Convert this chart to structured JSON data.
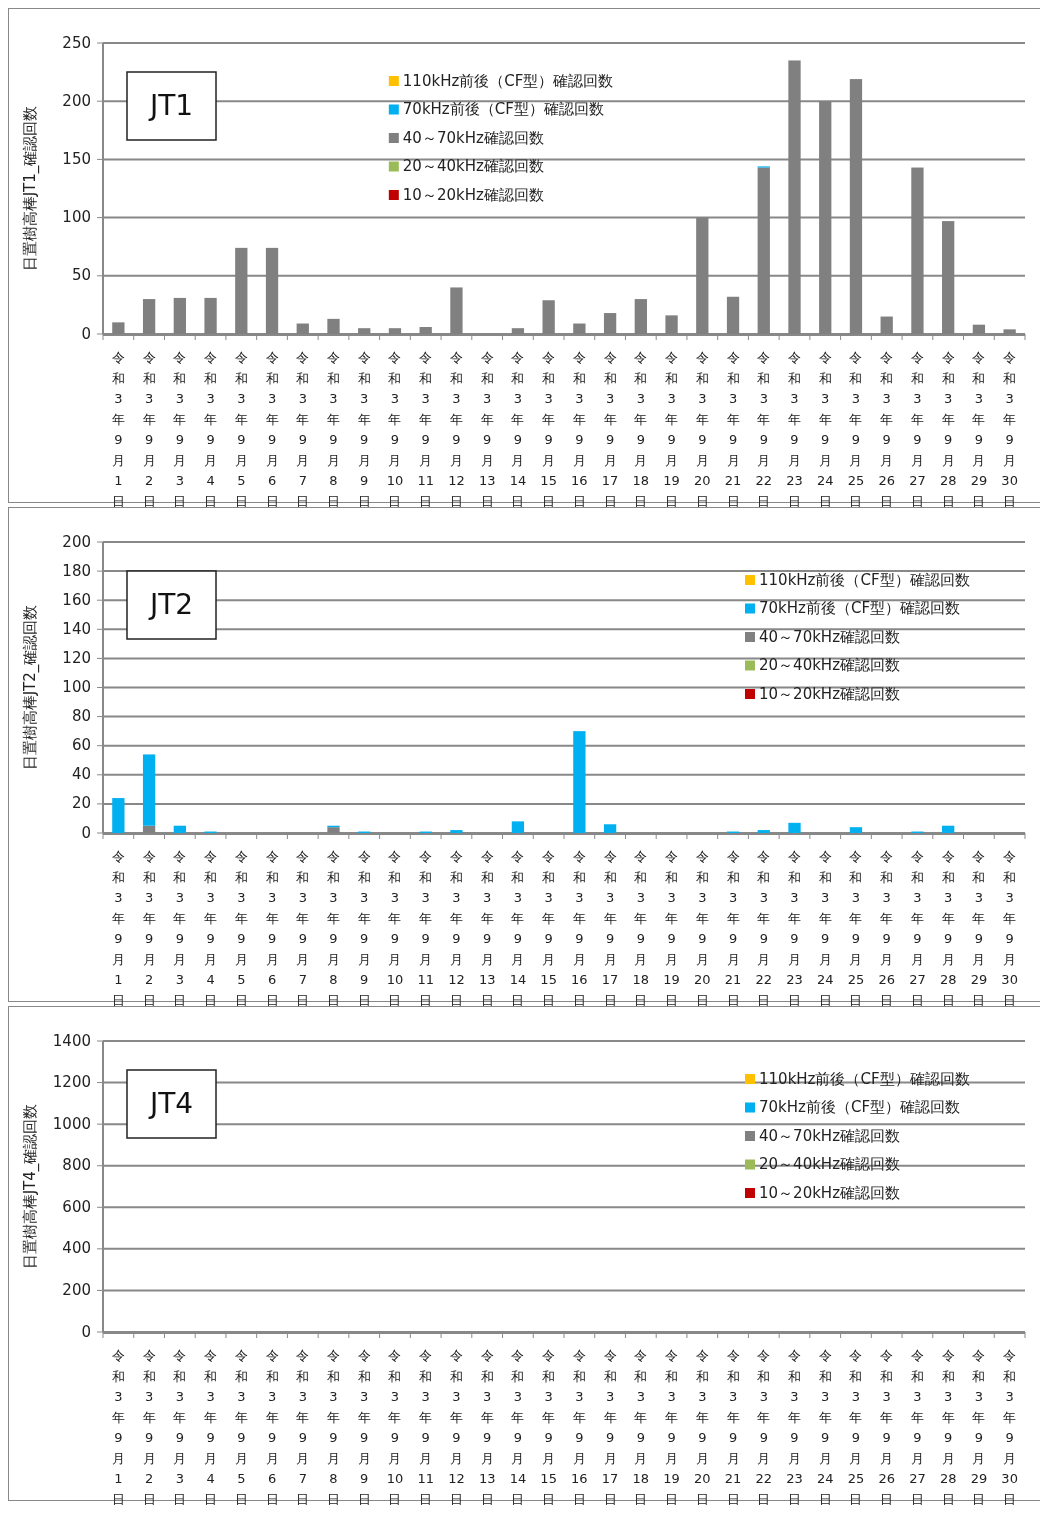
{
  "chart_data": [
    {
      "type": "bar",
      "title": "JT1",
      "ylabel": "日置樹高棒JT1_確認回数",
      "stacked": true,
      "grid": "y",
      "legend": "top",
      "ylim": [
        0,
        250
      ],
      "yticks": [
        0,
        50,
        100,
        150,
        200,
        250
      ],
      "categories": [
        "令和3年9月1日",
        "令和3年9月2日",
        "令和3年9月3日",
        "令和3年9月4日",
        "令和3年9月5日",
        "令和3年9月6日",
        "令和3年9月7日",
        "令和3年9月8日",
        "令和3年9月9日",
        "令和3年9月10日",
        "令和3年9月11日",
        "令和3年9月12日",
        "令和3年9月13日",
        "令和3年9月14日",
        "令和3年9月15日",
        "令和3年9月16日",
        "令和3年9月17日",
        "令和3年9月18日",
        "令和3年9月19日",
        "令和3年9月20日",
        "令和3年9月21日",
        "令和3年9月22日",
        "令和3年9月23日",
        "令和3年9月24日",
        "令和3年9月25日",
        "令和3年9月26日",
        "令和3年9月27日",
        "令和3年9月28日",
        "令和3年9月29日",
        "令和3年9月30日"
      ],
      "series": [
        {
          "name": "10～20kHz確認回数",
          "color": "#c00000",
          "values": [
            0,
            0,
            0,
            0,
            0,
            0,
            0,
            0,
            0,
            0,
            0,
            0,
            0,
            0,
            0,
            0,
            0,
            0,
            0,
            0,
            0,
            0,
            0,
            0,
            0,
            0,
            0,
            0,
            0,
            0
          ]
        },
        {
          "name": "20～40kHz確認回数",
          "color": "#9bbb59",
          "values": [
            0,
            0,
            0,
            0,
            0,
            0,
            0,
            0,
            0,
            0,
            0,
            0,
            0,
            0,
            0,
            0,
            0,
            0,
            0,
            0,
            0,
            0,
            0,
            0,
            0,
            0,
            0,
            0,
            0,
            0
          ]
        },
        {
          "name": "40～70kHz確認回数",
          "color": "#808080",
          "values": [
            10,
            30,
            31,
            31,
            74,
            74,
            9,
            13,
            5,
            5,
            6,
            40,
            0,
            5,
            29,
            9,
            18,
            30,
            16,
            100,
            32,
            143,
            235,
            200,
            219,
            15,
            143,
            97,
            8,
            4
          ]
        },
        {
          "name": "70kHz前後（CF型）確認回数",
          "color": "#00b0f0",
          "values": [
            0,
            0,
            0,
            0,
            0,
            0,
            0,
            0,
            0,
            0,
            0,
            0,
            0,
            0,
            0,
            0,
            0,
            0,
            0,
            0,
            0,
            1,
            0,
            0,
            0,
            0,
            0,
            0,
            0,
            0
          ]
        },
        {
          "name": "110kHz前後（CF型）確認回数",
          "color": "#ffc000",
          "values": [
            0,
            0,
            0,
            0,
            0,
            0,
            0,
            0,
            0,
            0,
            0,
            0,
            0,
            0,
            0,
            0,
            0,
            0,
            0,
            0,
            0,
            0,
            0,
            0,
            0,
            0,
            0,
            0,
            0,
            0
          ]
        }
      ]
    },
    {
      "type": "bar",
      "title": "JT2",
      "ylabel": "日置樹高棒JT2_確認回数",
      "stacked": true,
      "grid": "y",
      "legend": "top right",
      "ylim": [
        0,
        200
      ],
      "yticks": [
        0,
        20,
        40,
        60,
        80,
        100,
        120,
        140,
        160,
        180,
        200
      ],
      "categories": [
        "令和3年9月1日",
        "令和3年9月2日",
        "令和3年9月3日",
        "令和3年9月4日",
        "令和3年9月5日",
        "令和3年9月6日",
        "令和3年9月7日",
        "令和3年9月8日",
        "令和3年9月9日",
        "令和3年9月10日",
        "令和3年9月11日",
        "令和3年9月12日",
        "令和3年9月13日",
        "令和3年9月14日",
        "令和3年9月15日",
        "令和3年9月16日",
        "令和3年9月17日",
        "令和3年9月18日",
        "令和3年9月19日",
        "令和3年9月20日",
        "令和3年9月21日",
        "令和3年9月22日",
        "令和3年9月23日",
        "令和3年9月24日",
        "令和3年9月25日",
        "令和3年9月26日",
        "令和3年9月27日",
        "令和3年9月28日",
        "令和3年9月29日",
        "令和3年9月30日"
      ],
      "series": [
        {
          "name": "10～20kHz確認回数",
          "color": "#c00000",
          "values": [
            0,
            0,
            0,
            0,
            0,
            0,
            0,
            0,
            0,
            0,
            0,
            0,
            0,
            0,
            0,
            0,
            0,
            0,
            0,
            0,
            0,
            0,
            0,
            0,
            0,
            0,
            0,
            0,
            0,
            0
          ]
        },
        {
          "name": "20～40kHz確認回数",
          "color": "#9bbb59",
          "values": [
            0,
            0,
            0,
            0,
            0,
            0,
            0,
            0,
            0,
            0,
            0,
            0,
            0,
            0,
            0,
            0,
            0,
            0,
            0,
            0,
            0,
            0,
            0,
            0,
            0,
            0,
            0,
            0,
            0,
            0
          ]
        },
        {
          "name": "40～70kHz確認回数",
          "color": "#808080",
          "values": [
            0,
            5,
            0,
            0,
            0,
            0,
            0,
            4,
            0,
            0,
            0,
            0,
            0,
            0,
            0,
            0,
            0,
            0,
            0,
            0,
            0,
            0,
            0,
            0,
            0,
            0,
            0,
            0,
            0,
            0
          ]
        },
        {
          "name": "70kHz前後（CF型）確認回数",
          "color": "#00b0f0",
          "values": [
            24,
            49,
            5,
            1,
            0,
            0,
            0,
            1,
            1,
            0,
            1,
            2,
            0,
            8,
            0,
            70,
            6,
            0,
            0,
            0,
            1,
            2,
            7,
            0,
            4,
            0,
            1,
            5,
            0,
            0
          ]
        },
        {
          "name": "110kHz前後（CF型）確認回数",
          "color": "#ffc000",
          "values": [
            0,
            0,
            0,
            0,
            0,
            0,
            0,
            0,
            0,
            0,
            0,
            0,
            0,
            0,
            0,
            0,
            0,
            0,
            0,
            0,
            0,
            0,
            0,
            0,
            0,
            0,
            0,
            0,
            0,
            0
          ]
        }
      ]
    },
    {
      "type": "bar",
      "title": "JT4",
      "ylabel": "日置樹高棒JT4_確認回数",
      "stacked": true,
      "grid": "y",
      "legend": "top right",
      "ylim": [
        0,
        1400
      ],
      "yticks": [
        0,
        200,
        400,
        600,
        800,
        1000,
        1200,
        1400
      ],
      "categories": [
        "令和3年9月1日",
        "令和3年9月2日",
        "令和3年9月3日",
        "令和3年9月4日",
        "令和3年9月5日",
        "令和3年9月6日",
        "令和3年9月7日",
        "令和3年9月8日",
        "令和3年9月9日",
        "令和3年9月10日",
        "令和3年9月11日",
        "令和3年9月12日",
        "令和3年9月13日",
        "令和3年9月14日",
        "令和3年9月15日",
        "令和3年9月16日",
        "令和3年9月17日",
        "令和3年9月18日",
        "令和3年9月19日",
        "令和3年9月20日",
        "令和3年9月21日",
        "令和3年9月22日",
        "令和3年9月23日",
        "令和3年9月24日",
        "令和3年9月25日",
        "令和3年9月26日",
        "令和3年9月27日",
        "令和3年9月28日",
        "令和3年9月29日",
        "令和3年9月30日"
      ],
      "series": [
        {
          "name": "10～20kHz確認回数",
          "color": "#c00000",
          "values": [
            0,
            0,
            0,
            0,
            0,
            0,
            0,
            0,
            0,
            0,
            0,
            0,
            0,
            0,
            0,
            0,
            0,
            0,
            0,
            0,
            0,
            0,
            0,
            0,
            0,
            0,
            0,
            0,
            0,
            0
          ]
        },
        {
          "name": "20～40kHz確認回数",
          "color": "#9bbb59",
          "values": [
            0,
            0,
            0,
            0,
            0,
            0,
            0,
            0,
            0,
            0,
            0,
            0,
            0,
            0,
            0,
            0,
            0,
            0,
            0,
            0,
            0,
            0,
            0,
            0,
            0,
            0,
            0,
            0,
            0,
            0
          ]
        },
        {
          "name": "40～70kHz確認回数",
          "color": "#808080",
          "values": [
            0,
            0,
            0,
            0,
            0,
            0,
            0,
            0,
            0,
            0,
            0,
            0,
            0,
            0,
            0,
            0,
            0,
            0,
            0,
            0,
            0,
            0,
            0,
            0,
            0,
            0,
            0,
            0,
            0,
            0
          ]
        },
        {
          "name": "70kHz前後（CF型）確認回数",
          "color": "#00b0f0",
          "values": [
            0,
            0,
            0,
            0,
            0,
            0,
            0,
            0,
            0,
            0,
            0,
            0,
            0,
            0,
            0,
            0,
            0,
            0,
            0,
            0,
            0,
            0,
            0,
            0,
            0,
            0,
            0,
            0,
            0,
            0
          ]
        },
        {
          "name": "110kHz前後（CF型）確認回数",
          "color": "#ffc000",
          "values": [
            0,
            0,
            0,
            0,
            0,
            0,
            0,
            0,
            0,
            0,
            0,
            0,
            0,
            0,
            0,
            0,
            0,
            0,
            0,
            0,
            0,
            0,
            0,
            0,
            0,
            0,
            0,
            0,
            0,
            0
          ]
        }
      ]
    }
  ]
}
